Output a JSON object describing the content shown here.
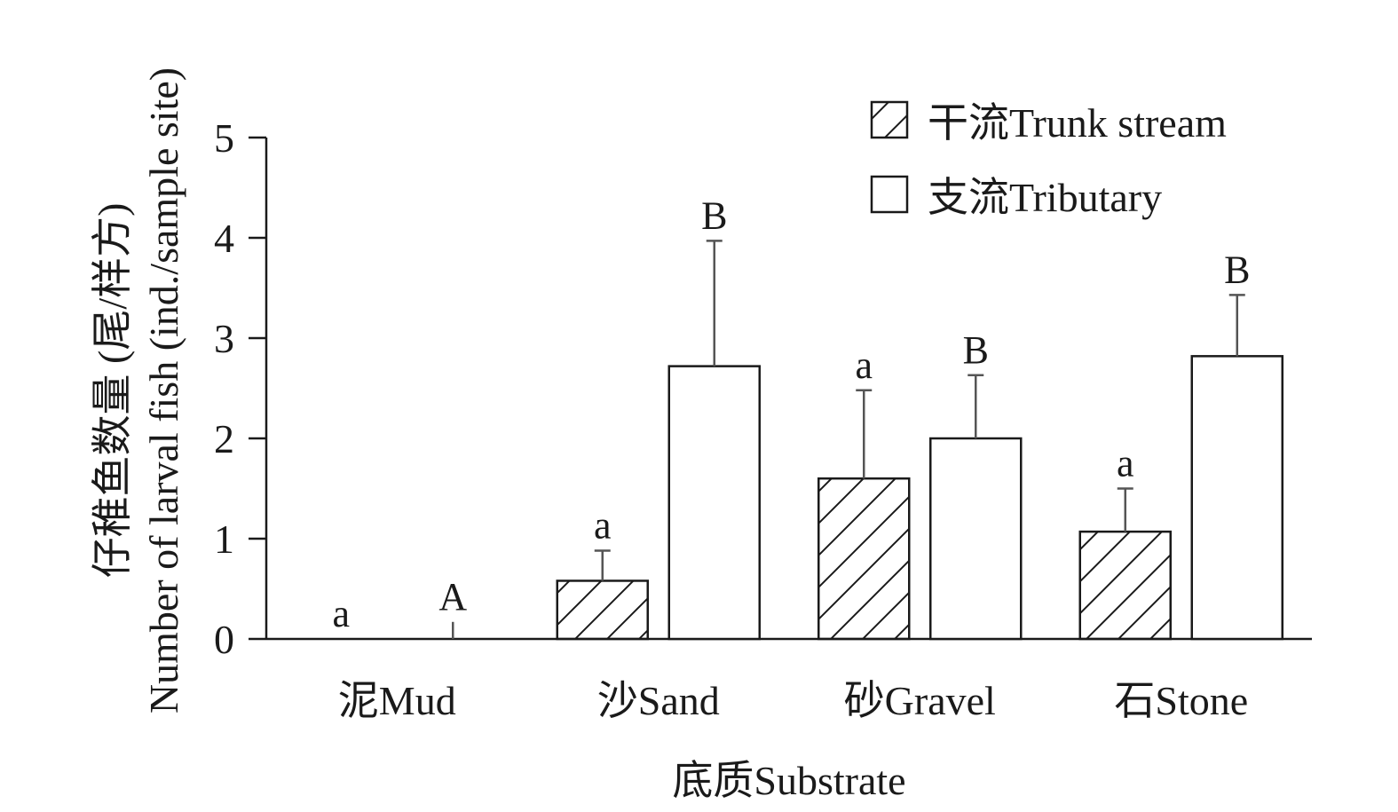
{
  "chart_data": {
    "type": "bar",
    "xlabel": "底质Substrate",
    "ylabel_line1": "仔稚鱼数量 (尾/样方)",
    "ylabel_line2": "Number of larval fish (ind./sample site)",
    "ylim": [
      0,
      5
    ],
    "yticks": [
      "0",
      "1",
      "2",
      "3",
      "4",
      "5"
    ],
    "categories": [
      "泥Mud",
      "沙Sand",
      "砂Gravel",
      "石Stone"
    ],
    "legend_position": "top-right",
    "series": [
      {
        "name": "干流Trunk stream",
        "pattern": "hatched",
        "values": [
          0,
          0.58,
          1.6,
          1.07
        ],
        "error_upper": [
          0,
          0.88,
          2.48,
          1.5
        ],
        "letters": [
          "a",
          "a",
          "a",
          "a"
        ]
      },
      {
        "name": "支流Tributary",
        "pattern": "open",
        "values": [
          0,
          2.72,
          2.0,
          2.82
        ],
        "error_upper": [
          0.17,
          3.97,
          2.63,
          3.43
        ],
        "letters": [
          "A",
          "B",
          "B",
          "B"
        ]
      }
    ],
    "colors": {
      "stroke": "#1a1a1a",
      "fill": "#ffffff",
      "error_bar": "#555555"
    }
  }
}
